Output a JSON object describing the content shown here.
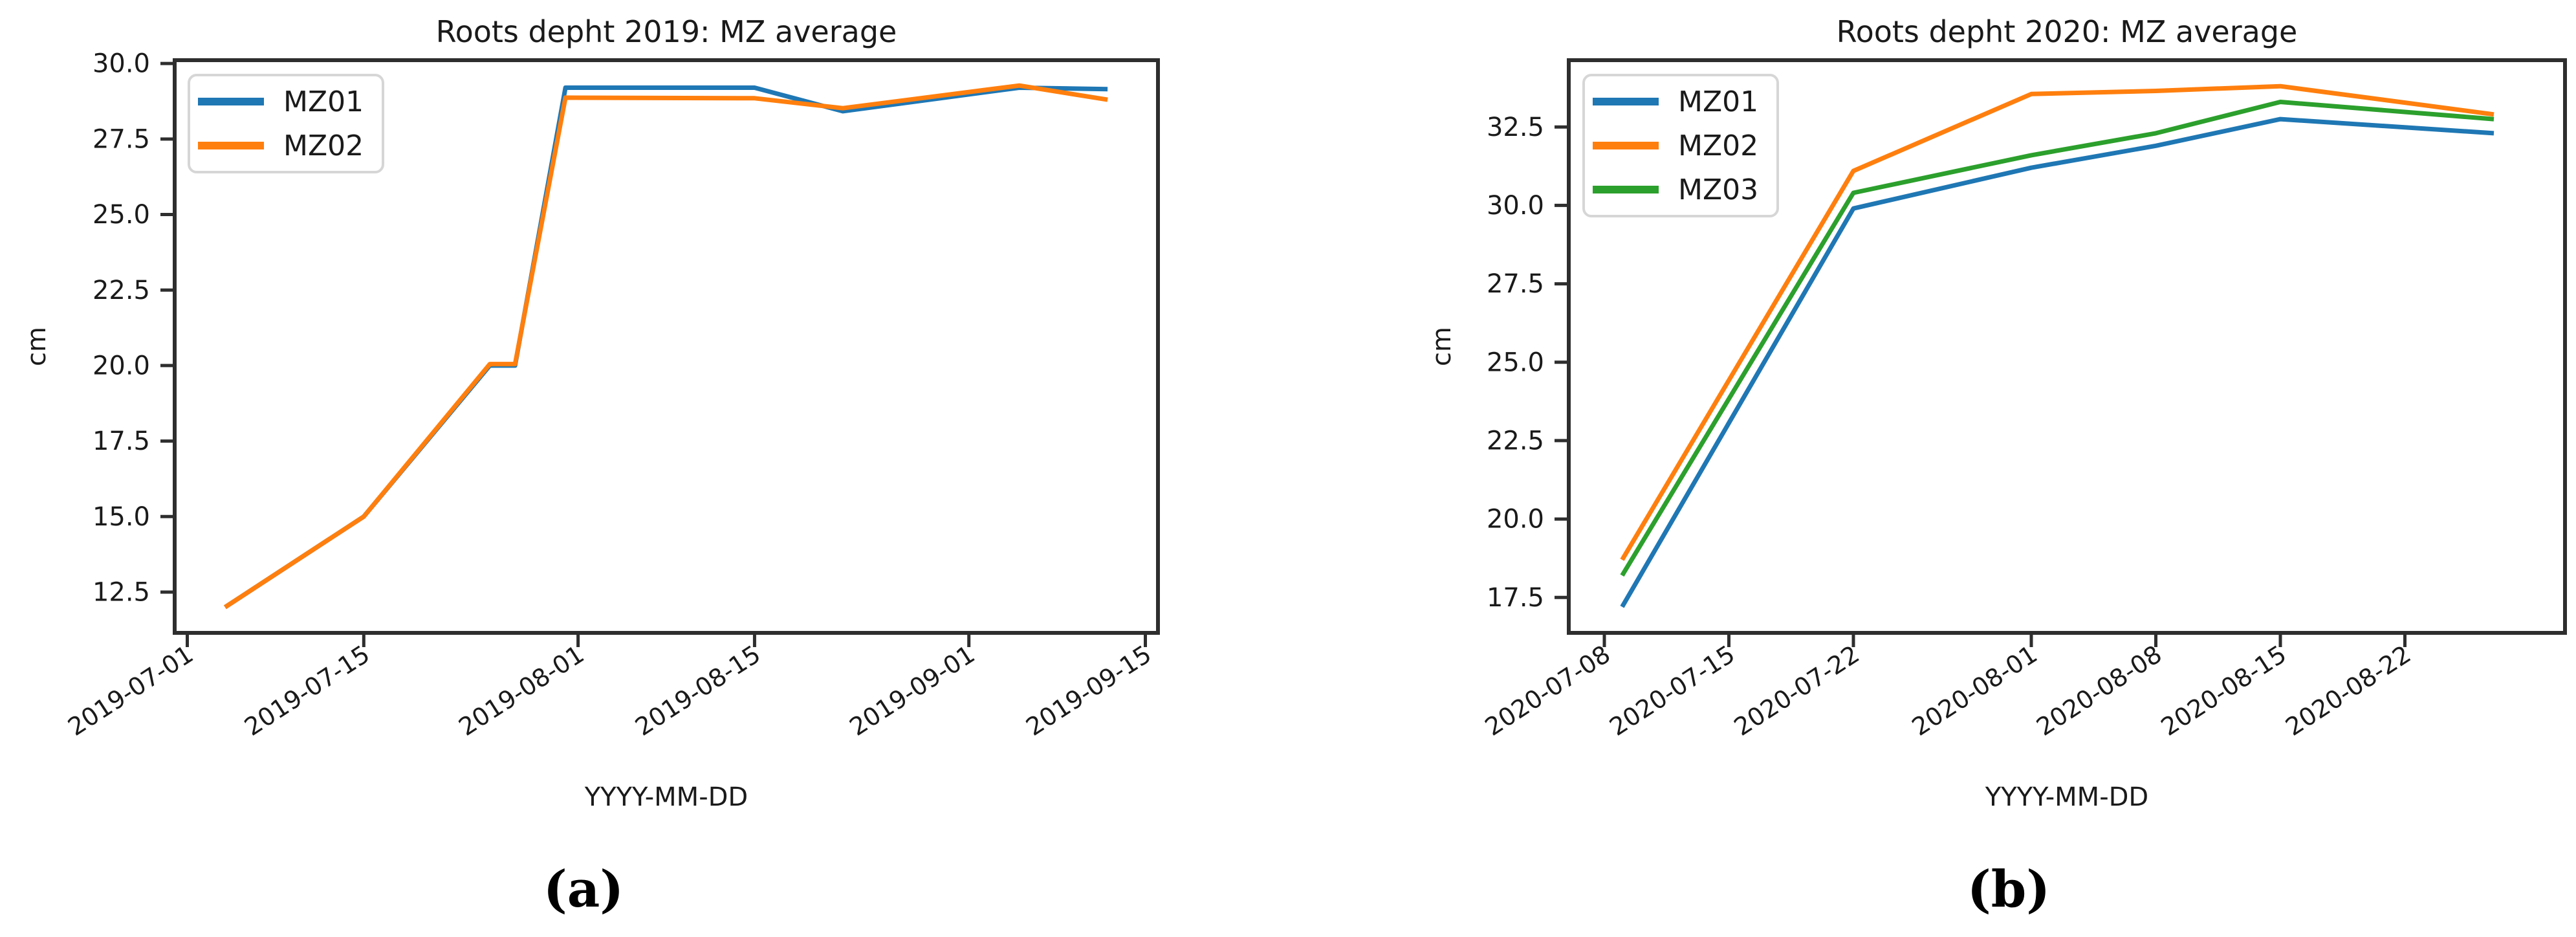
{
  "figure": {
    "background": "#ffffff",
    "text_color": "#1a1a1a",
    "spine_color": "#2e2e2e",
    "legend_border_color": "#d6d6d6",
    "legend_background": "#ffffff"
  },
  "captions": {
    "a": "(a)",
    "b": "(b)"
  },
  "chart_data": [
    {
      "type": "line",
      "title": "Roots depht 2019: MZ average",
      "xlabel": "YYYY-MM-DD",
      "ylabel": "cm",
      "grid": false,
      "legend_position": "upper left",
      "legend_entries": [
        "MZ01",
        "MZ02"
      ],
      "x_tick_labels": [
        "2019-07-01",
        "2019-07-15",
        "2019-08-01",
        "2019-08-15",
        "2019-09-01",
        "2019-09-15"
      ],
      "y_tick_labels": [
        "12.5",
        "15.0",
        "17.5",
        "20.0",
        "22.5",
        "25.0",
        "27.5",
        "30.0"
      ],
      "xlim": [
        "2019-06-30",
        "2019-09-16"
      ],
      "ylim": [
        11.15,
        30.11
      ],
      "series": [
        {
          "name": "MZ01",
          "color": "#1f77b4",
          "points": [
            [
              "2019-07-04",
              12.0
            ],
            [
              "2019-07-15",
              15.0
            ],
            [
              "2019-07-25",
              20.0
            ],
            [
              "2019-07-27",
              20.0
            ],
            [
              "2019-07-31",
              29.2
            ],
            [
              "2019-08-15",
              29.2
            ],
            [
              "2019-08-22",
              28.42
            ],
            [
              "2019-09-05",
              29.2
            ],
            [
              "2019-09-12",
              29.15
            ]
          ]
        },
        {
          "name": "MZ02",
          "color": "#ff7f0e",
          "points": [
            [
              "2019-07-04",
              12.0
            ],
            [
              "2019-07-15",
              15.0
            ],
            [
              "2019-07-25",
              20.05
            ],
            [
              "2019-07-27",
              20.05
            ],
            [
              "2019-07-31",
              28.87
            ],
            [
              "2019-08-15",
              28.85
            ],
            [
              "2019-08-22",
              28.52
            ],
            [
              "2019-09-05",
              29.27
            ],
            [
              "2019-09-12",
              28.8
            ]
          ]
        }
      ]
    },
    {
      "type": "line",
      "title": "Roots depht 2020: MZ average",
      "xlabel": "YYYY-MM-DD",
      "ylabel": "cm",
      "grid": false,
      "legend_position": "upper left",
      "legend_entries": [
        "MZ01",
        "MZ02",
        "MZ03"
      ],
      "x_tick_labels": [
        "2020-07-08",
        "2020-07-15",
        "2020-07-22",
        "2020-08-01",
        "2020-08-08",
        "2020-08-15",
        "2020-08-22"
      ],
      "y_tick_labels": [
        "17.5",
        "20.0",
        "22.5",
        "25.0",
        "27.5",
        "30.0",
        "32.5"
      ],
      "xlim": [
        "2020-07-06",
        "2020-08-31"
      ],
      "ylim": [
        16.37,
        34.63
      ],
      "series": [
        {
          "name": "MZ01",
          "color": "#1f77b4",
          "points": [
            [
              "2020-07-09",
              17.2
            ],
            [
              "2020-07-22",
              29.9
            ],
            [
              "2020-08-01",
              31.2
            ],
            [
              "2020-08-08",
              31.9
            ],
            [
              "2020-08-15",
              32.75
            ],
            [
              "2020-08-27",
              32.3
            ]
          ]
        },
        {
          "name": "MZ02",
          "color": "#ff7f0e",
          "points": [
            [
              "2020-07-09",
              18.7
            ],
            [
              "2020-07-22",
              31.1
            ],
            [
              "2020-08-01",
              33.55
            ],
            [
              "2020-08-08",
              33.65
            ],
            [
              "2020-08-15",
              33.8
            ],
            [
              "2020-08-27",
              32.9
            ]
          ]
        },
        {
          "name": "MZ03",
          "color": "#2ca02c",
          "points": [
            [
              "2020-07-09",
              18.2
            ],
            [
              "2020-07-22",
              30.4
            ],
            [
              "2020-08-01",
              31.6
            ],
            [
              "2020-08-08",
              32.3
            ],
            [
              "2020-08-15",
              33.3
            ],
            [
              "2020-08-27",
              32.75
            ]
          ]
        }
      ]
    }
  ]
}
